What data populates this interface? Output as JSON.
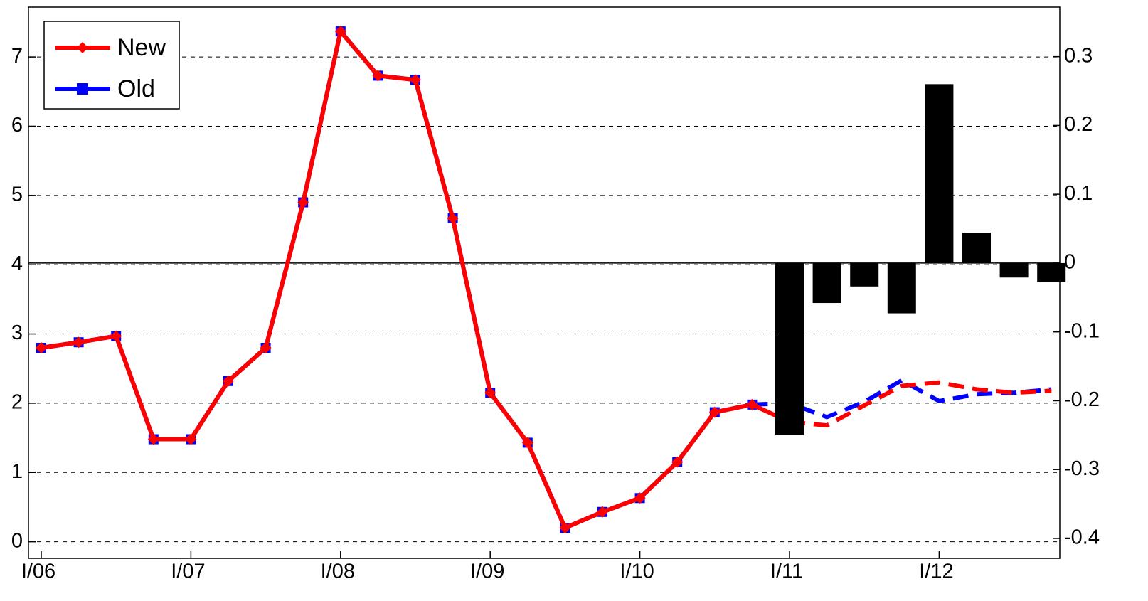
{
  "chart_data": {
    "type": "line",
    "categories": [
      "I/06",
      null,
      null,
      null,
      "I/07",
      null,
      null,
      null,
      "I/08",
      null,
      null,
      null,
      "I/09",
      null,
      null,
      null,
      "I/10",
      null,
      null,
      null,
      "I/11",
      null,
      null,
      null,
      "I/12",
      null,
      null,
      null
    ],
    "series": [
      {
        "name": "Old",
        "color": "#0000ff",
        "marker": "square",
        "dash_from": 19,
        "values": [
          2.8,
          2.88,
          2.97,
          1.48,
          1.48,
          2.32,
          2.8,
          4.9,
          7.37,
          6.73,
          6.67,
          4.67,
          2.15,
          1.43,
          0.2,
          0.43,
          0.63,
          1.15,
          1.87,
          1.98,
          2.0,
          1.8,
          2.02,
          2.33,
          2.03,
          2.13,
          2.15,
          2.2
        ]
      },
      {
        "name": "New",
        "color": "#ff0000",
        "marker": "diamond",
        "dash_from": 20,
        "values": [
          2.8,
          2.88,
          2.97,
          1.48,
          1.48,
          2.32,
          2.8,
          4.9,
          7.37,
          6.73,
          6.67,
          4.67,
          2.15,
          1.43,
          0.2,
          0.43,
          0.63,
          1.15,
          1.87,
          1.98,
          1.73,
          1.68,
          1.97,
          2.25,
          2.3,
          2.2,
          2.15,
          2.18
        ]
      },
      {
        "type": "bar",
        "axis": "y2",
        "color": "#000000",
        "values": [
          null,
          null,
          null,
          null,
          null,
          null,
          null,
          null,
          null,
          null,
          null,
          null,
          null,
          null,
          null,
          null,
          null,
          null,
          null,
          null,
          -0.25,
          -0.058,
          -0.034,
          -0.073,
          0.26,
          0.044,
          -0.021,
          -0.028
        ]
      }
    ],
    "legend_order": [
      "New",
      "Old"
    ],
    "legend": "upper left",
    "ylim": [
      -0.24,
      7.72
    ],
    "yticks": [
      0,
      1,
      2,
      3,
      4,
      5,
      6,
      7
    ],
    "y2lim": [
      -0.429,
      0.372
    ],
    "y2ticks": [
      -0.4,
      -0.3,
      -0.2,
      -0.1,
      0,
      0.1,
      0.2,
      0.3
    ],
    "grid": true
  }
}
